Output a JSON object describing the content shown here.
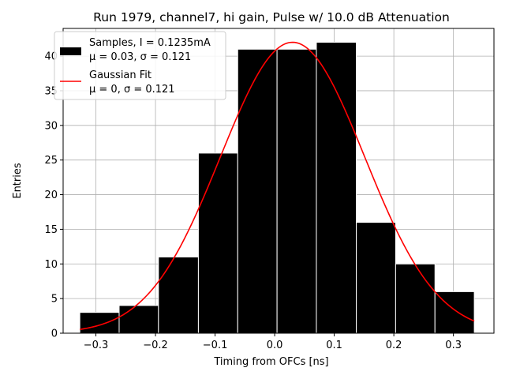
{
  "chart_data": {
    "type": "bar",
    "title": "Run 1979, channel7, hi gain, Pulse w/ 10.0 dB Attenuation",
    "xlabel": "Timing from OFCs [ns]",
    "ylabel": "Entries",
    "xlim": [
      -0.355,
      0.368
    ],
    "ylim": [
      0,
      44
    ],
    "grid": true,
    "legend_placement": "top-left",
    "bar_color": "#000000",
    "bar_edge_color": "#ffffff",
    "fit_color": "#ff0000",
    "x_ticks": [
      -0.3,
      -0.2,
      -0.1,
      0.0,
      0.1,
      0.2,
      0.3
    ],
    "x_tick_labels": [
      "−0.3",
      "−0.2",
      "−0.1",
      "0.0",
      "0.1",
      "0.2",
      "0.3"
    ],
    "y_ticks": [
      0,
      5,
      10,
      15,
      20,
      25,
      30,
      35,
      40
    ],
    "y_tick_labels": [
      "0",
      "5",
      "10",
      "15",
      "20",
      "25",
      "30",
      "35",
      "40"
    ],
    "bin_edges": [
      -0.327,
      -0.261,
      -0.195,
      -0.128,
      -0.062,
      0.004,
      0.07,
      0.137,
      0.203,
      0.269,
      0.335
    ],
    "values": [
      3,
      4,
      11,
      26,
      41,
      41,
      42,
      16,
      10,
      6
    ],
    "series": [
      {
        "name": "Samples, I = 0.1235mA",
        "stats": "μ = 0.03, σ = 0.121",
        "type": "histogram"
      },
      {
        "name": "Gaussian Fit",
        "stats": "μ = 0, σ = 0.121",
        "type": "line",
        "mean_plotted": 0.03,
        "sigma": 0.121,
        "amplitude": 42,
        "x_range": [
          -0.327,
          0.335
        ]
      }
    ]
  }
}
